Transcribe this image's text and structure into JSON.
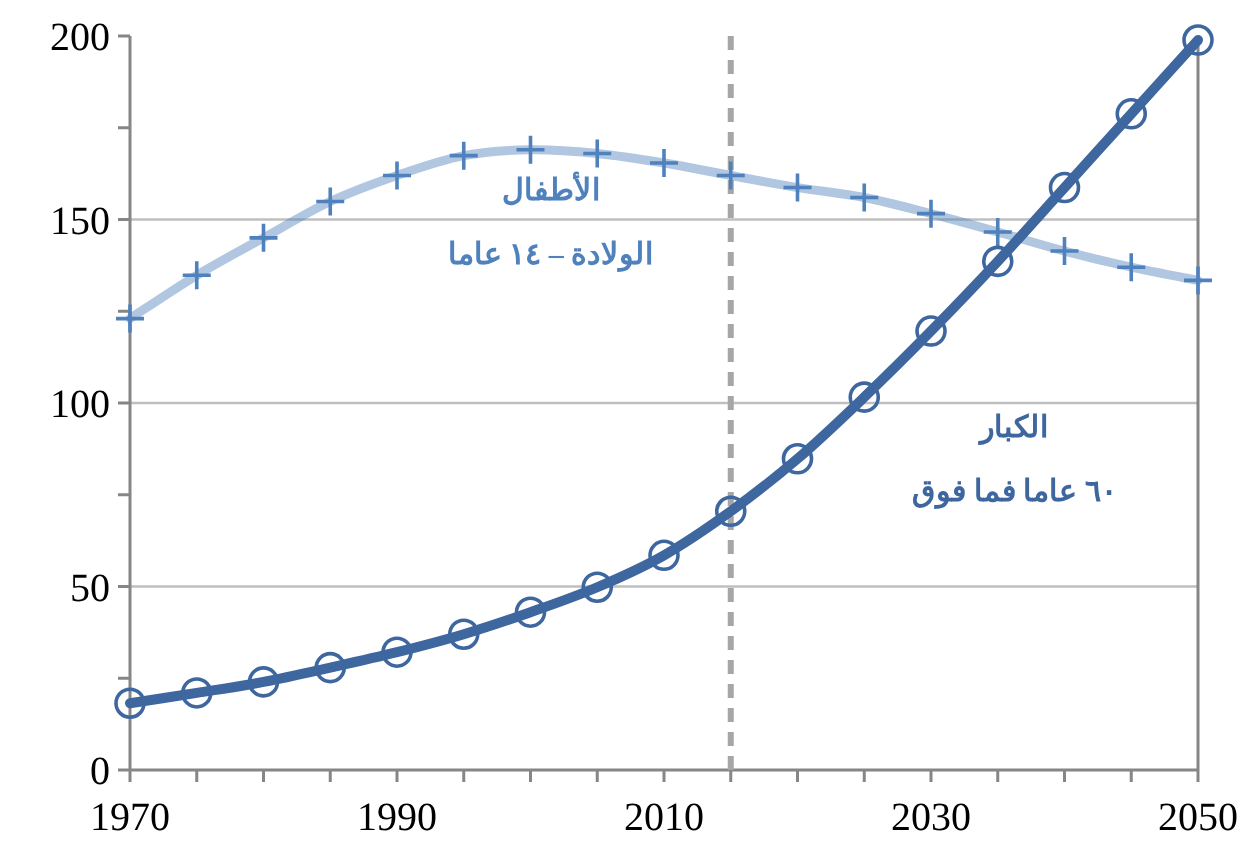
{
  "chart_data": {
    "type": "line",
    "x": [
      1970,
      1975,
      1980,
      1985,
      1990,
      1995,
      2000,
      2005,
      2010,
      2015,
      2020,
      2025,
      2030,
      2035,
      2040,
      2045,
      2050
    ],
    "series": [
      {
        "name": "الأطفال\nالولادة – ١٤ عاما",
        "color": "#4f81bd",
        "marker": "cross",
        "values": [
          123,
          134.8,
          145,
          154.9,
          162,
          167.4,
          169,
          168,
          165.4,
          162,
          158.7,
          156,
          151.6,
          146.6,
          141.4,
          137,
          133.4
        ]
      },
      {
        "name": "الكبار\n٦٠ عاما فما فوق",
        "color": "#3e67a0",
        "marker": "circle",
        "values": [
          18.2,
          21,
          24,
          27.9,
          32.1,
          37,
          43,
          49.8,
          58.5,
          70.5,
          84.8,
          101.6,
          119.6,
          138.6,
          158.7,
          178.8,
          198.9
        ]
      }
    ],
    "xlim": [
      1970,
      2050
    ],
    "xticks": [
      1970,
      {
        "value": 1975,
        "label": null
      },
      {
        "value": 1980,
        "label": null
      },
      {
        "value": 1985,
        "label": null
      },
      1990,
      {
        "value": 1995,
        "label": null
      },
      {
        "value": 2000,
        "label": null
      },
      {
        "value": 2005,
        "label": null
      },
      2010,
      {
        "value": 2015,
        "label": null
      },
      {
        "value": 2020,
        "label": null
      },
      {
        "value": 2025,
        "label": null
      },
      2030,
      {
        "value": 2035,
        "label": null
      },
      {
        "value": 2040,
        "label": null
      },
      {
        "value": 2045,
        "label": null
      },
      2050
    ],
    "ylim": [
      0,
      200
    ],
    "yticks": [
      0,
      {
        "value": 25,
        "label": null
      },
      50,
      {
        "value": 75,
        "label": null
      },
      100,
      {
        "value": 125,
        "label": null
      },
      150,
      {
        "value": 175,
        "label": null
      },
      200
    ],
    "grid": "y",
    "ref_lines": [
      {
        "axis": "x",
        "value": 2015,
        "color": "#a6a6a6",
        "line_style": "dashed"
      }
    ]
  }
}
